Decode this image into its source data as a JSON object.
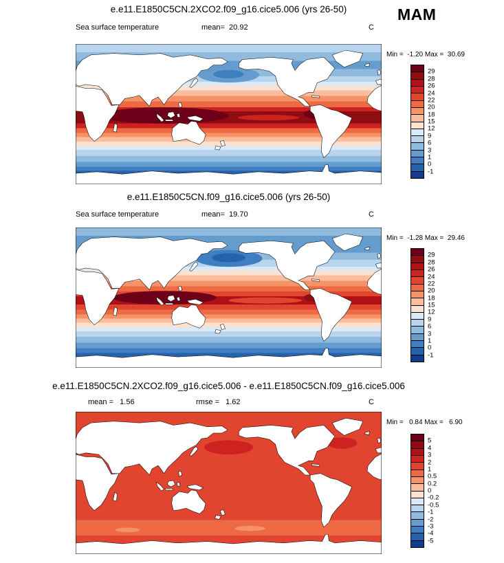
{
  "season_label": "MAM",
  "palette": [
    "#6d0018",
    "#8d0d12",
    "#b01117",
    "#ce2220",
    "#e2452f",
    "#ee6a45",
    "#f69268",
    "#fbbd9b",
    "#fde3cf",
    "#dbe9f6",
    "#b9d5ee",
    "#90bade",
    "#659cce",
    "#3f7fc1",
    "#2563ae",
    "#143c8c"
  ],
  "panels": [
    {
      "title": "e.e11.E1850C5CN.2XCO2.f09_g16.cice5.006 (yrs 26-50)",
      "field_label": "Sea surface temperature",
      "mean_text": "mean=  20.92",
      "units": "C",
      "minmax_text": "Min =  -1.20 Max =  30.69",
      "colorbar_labels": [
        "29",
        "28",
        "26",
        "24",
        "22",
        "20",
        "18",
        "15",
        "12",
        "9",
        "6",
        "3",
        "1",
        "0",
        "-1"
      ],
      "field_bands": [
        [
          0.06,
          10
        ],
        [
          0.12,
          11
        ],
        [
          0.18,
          12
        ],
        [
          0.23,
          11
        ],
        [
          0.27,
          10
        ],
        [
          0.3,
          9
        ],
        [
          0.33,
          8
        ],
        [
          0.37,
          7
        ],
        [
          0.41,
          6
        ],
        [
          0.45,
          5
        ],
        [
          0.48,
          3
        ],
        [
          0.565,
          1
        ],
        [
          0.6,
          3
        ],
        [
          0.635,
          5
        ],
        [
          0.665,
          6
        ],
        [
          0.695,
          7
        ],
        [
          0.725,
          8
        ],
        [
          0.755,
          9
        ],
        [
          0.8,
          10
        ],
        [
          0.84,
          11
        ],
        [
          0.875,
          12
        ],
        [
          0.905,
          13
        ],
        [
          0.94,
          14
        ],
        [
          1.0,
          15
        ]
      ],
      "field_blobs": [
        [
          0.5,
          0.22,
          0.1,
          0.055,
          12
        ],
        [
          0.5,
          0.215,
          0.05,
          0.03,
          13
        ],
        [
          0.29,
          0.51,
          0.21,
          0.058,
          0
        ],
        [
          0.63,
          0.525,
          0.1,
          0.02,
          3
        ],
        [
          0.795,
          0.5,
          0.05,
          0.035,
          0
        ]
      ]
    },
    {
      "title": "e.e11.E1850C5CN.f09_g16.cice5.006 (yrs 26-50)",
      "field_label": "Sea surface temperature",
      "mean_text": "mean=  19.70",
      "units": "C",
      "minmax_text": "Min =  -1.28 Max =  29.46",
      "colorbar_labels": [
        "29",
        "28",
        "26",
        "24",
        "22",
        "20",
        "18",
        "15",
        "12",
        "9",
        "6",
        "3",
        "1",
        "0",
        "-1"
      ],
      "field_bands": [
        [
          0.06,
          11
        ],
        [
          0.18,
          12
        ],
        [
          0.23,
          11
        ],
        [
          0.28,
          10
        ],
        [
          0.31,
          9
        ],
        [
          0.34,
          8
        ],
        [
          0.38,
          7
        ],
        [
          0.42,
          6
        ],
        [
          0.455,
          5
        ],
        [
          0.49,
          4
        ],
        [
          0.55,
          2
        ],
        [
          0.585,
          4
        ],
        [
          0.62,
          5
        ],
        [
          0.65,
          6
        ],
        [
          0.68,
          7
        ],
        [
          0.71,
          8
        ],
        [
          0.74,
          9
        ],
        [
          0.78,
          10
        ],
        [
          0.82,
          11
        ],
        [
          0.86,
          12
        ],
        [
          0.895,
          13
        ],
        [
          0.93,
          14
        ],
        [
          1.0,
          15
        ]
      ],
      "field_blobs": [
        [
          0.5,
          0.22,
          0.11,
          0.06,
          13
        ],
        [
          0.5,
          0.215,
          0.055,
          0.032,
          14
        ],
        [
          0.29,
          0.5,
          0.17,
          0.048,
          0
        ],
        [
          0.62,
          0.52,
          0.12,
          0.022,
          4
        ],
        [
          0.79,
          0.5,
          0.045,
          0.03,
          1
        ]
      ]
    },
    {
      "title": "e.e11.E1850C5CN.2XCO2.f09_g16.cice5.006 - e.e11.E1850C5CN.f09_g16.cice5.006",
      "field_label": "",
      "mean_text": "mean =   1.56",
      "rmse_text": "rmse =   1.62",
      "units": "C",
      "minmax_text": "Min =   0.84 Max =   6.90",
      "colorbar_labels": [
        "5",
        "4",
        "3",
        "2",
        "1",
        "0.5",
        "0.2",
        "0",
        "-0.2",
        "-0.5",
        "-1",
        "-2",
        "-3",
        "-4",
        "-5"
      ],
      "field_bands": [
        [
          0.76,
          4
        ],
        [
          0.87,
          5
        ],
        [
          1.0,
          4
        ]
      ],
      "field_blobs": [
        [
          0.5,
          0.25,
          0.08,
          0.05,
          3
        ],
        [
          0.87,
          0.22,
          0.05,
          0.04,
          3
        ],
        [
          0.57,
          0.82,
          0.05,
          0.018,
          6
        ],
        [
          0.17,
          0.83,
          0.04,
          0.016,
          6
        ],
        [
          0.33,
          0.84,
          0.05,
          0.015,
          5
        ]
      ]
    }
  ],
  "chart_data": [
    {
      "type": "heatmap",
      "title": "e.e11.E1850C5CN.2XCO2.f09_g16.cice5.006 (yrs 26-50)",
      "variable": "Sea surface temperature",
      "season": "MAM",
      "units": "C",
      "mean": 20.92,
      "min": -1.2,
      "max": 30.69,
      "contour_levels": [
        -1,
        0,
        1,
        3,
        6,
        9,
        12,
        15,
        18,
        20,
        22,
        24,
        26,
        28,
        29
      ],
      "legend_position": "right",
      "map": "global cylindrical equidistant, lon 0-360E, lat 90N-90S, warm pool dark red in tropics, cool blue N Pacific and Southern Ocean"
    },
    {
      "type": "heatmap",
      "title": "e.e11.E1850C5CN.f09_g16.cice5.006 (yrs 26-50)",
      "variable": "Sea surface temperature",
      "season": "MAM",
      "units": "C",
      "mean": 19.7,
      "min": -1.28,
      "max": 29.46,
      "contour_levels": [
        -1,
        0,
        1,
        3,
        6,
        9,
        12,
        15,
        18,
        20,
        22,
        24,
        26,
        28,
        29
      ],
      "legend_position": "right",
      "map": "global cylindrical equidistant, lon 0-360E, lat 90N-90S, control run slightly cooler, narrower warm pool, stronger N Pacific cool patch"
    },
    {
      "type": "heatmap",
      "title": "e.e11.E1850C5CN.2XCO2.f09_g16.cice5.006 - e.e11.E1850C5CN.f09_g16.cice5.006",
      "variable": "Sea surface temperature difference",
      "season": "MAM",
      "units": "C",
      "mean": 1.56,
      "rmse": 1.62,
      "min": 0.84,
      "max": 6.9,
      "contour_levels": [
        -5,
        -4,
        -3,
        -2,
        -1,
        -0.5,
        -0.2,
        0,
        0.2,
        0.5,
        1,
        2,
        3,
        4,
        5
      ],
      "legend_position": "right",
      "map": "global cylindrical equidistant, nearly uniform +1 to +2 C warming (orange), lighter band near Southern Ocean"
    }
  ]
}
